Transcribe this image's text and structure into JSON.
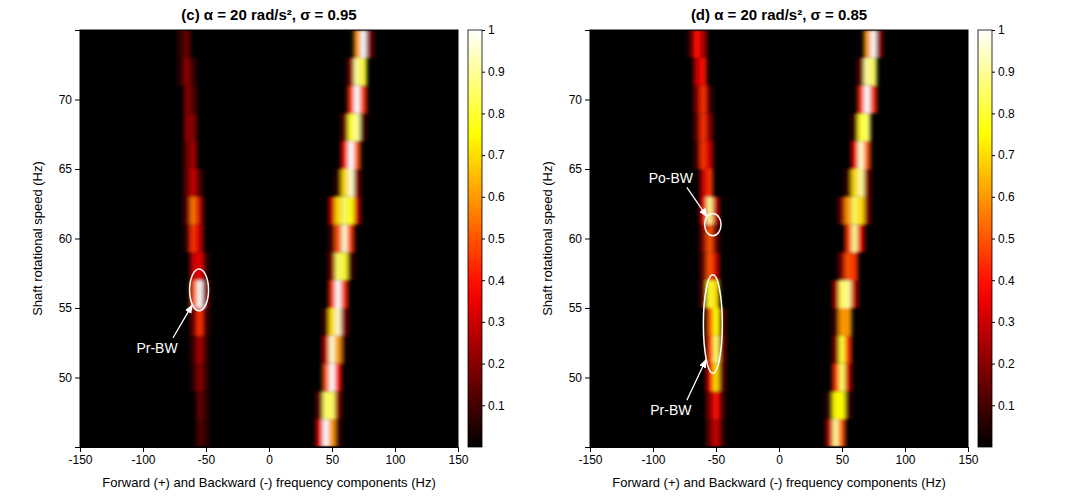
{
  "chart_data": [
    {
      "type": "heatmap",
      "title": "(c) α = 20 rad/s², σ = 0.95",
      "x_label": "Forward (+) and Backward (-) frequency components (Hz)",
      "y_label": "Shaft rotational speed (Hz)",
      "xlim": [
        -150,
        150
      ],
      "xticks": [
        -150,
        -100,
        -50,
        0,
        50,
        100,
        150
      ],
      "ylim": [
        45,
        75
      ],
      "yticks": [
        50,
        55,
        60,
        65,
        70
      ],
      "cell_size": [
        5,
        2
      ],
      "cells": [
        [
          40,
          46,
          0.35
        ],
        [
          45,
          46,
          1
        ],
        [
          50,
          46,
          0.6
        ],
        [
          55,
          46,
          0.1
        ],
        [
          40,
          48,
          0.15
        ],
        [
          45,
          48,
          0.85
        ],
        [
          50,
          48,
          0.85
        ],
        [
          55,
          48,
          0.2
        ],
        [
          45,
          50,
          0.5
        ],
        [
          50,
          50,
          1
        ],
        [
          55,
          50,
          0.4
        ],
        [
          45,
          52,
          0.3
        ],
        [
          50,
          52,
          0.95
        ],
        [
          55,
          52,
          0.6
        ],
        [
          60,
          52,
          0.05
        ],
        [
          45,
          54,
          0.1
        ],
        [
          50,
          54,
          0.7
        ],
        [
          55,
          54,
          0.95
        ],
        [
          60,
          54,
          0.2
        ],
        [
          50,
          56,
          0.45
        ],
        [
          55,
          56,
          1
        ],
        [
          60,
          56,
          0.45
        ],
        [
          50,
          58,
          0.2
        ],
        [
          55,
          58,
          0.85
        ],
        [
          60,
          58,
          0.8
        ],
        [
          65,
          58,
          0.1
        ],
        [
          50,
          60,
          0.1
        ],
        [
          55,
          60,
          0.5
        ],
        [
          60,
          60,
          0.95
        ],
        [
          65,
          60,
          0.45
        ],
        [
          50,
          62,
          0.3
        ],
        [
          55,
          62,
          0.7
        ],
        [
          60,
          62,
          0.85
        ],
        [
          65,
          62,
          0.75
        ],
        [
          70,
          62,
          0.3
        ],
        [
          55,
          64,
          0.1
        ],
        [
          60,
          64,
          0.7
        ],
        [
          65,
          64,
          0.95
        ],
        [
          70,
          64,
          0.2
        ],
        [
          60,
          66,
          0.4
        ],
        [
          65,
          66,
          1
        ],
        [
          70,
          66,
          0.5
        ],
        [
          60,
          68,
          0.15
        ],
        [
          65,
          68,
          0.8
        ],
        [
          70,
          68,
          0.9
        ],
        [
          75,
          68,
          0.1
        ],
        [
          65,
          70,
          0.45
        ],
        [
          70,
          70,
          1
        ],
        [
          75,
          70,
          0.45
        ],
        [
          65,
          72,
          0.2
        ],
        [
          70,
          72,
          0.9
        ],
        [
          75,
          72,
          0.8
        ],
        [
          70,
          74,
          0.6
        ],
        [
          75,
          74,
          1
        ],
        [
          80,
          74,
          0.2
        ],
        [
          -55,
          46,
          0.12
        ],
        [
          -50,
          46,
          0.06
        ],
        [
          -55,
          48,
          0.15
        ],
        [
          -50,
          48,
          0.06
        ],
        [
          -60,
          50,
          0.06
        ],
        [
          -55,
          50,
          0.2
        ],
        [
          -50,
          50,
          0.08
        ],
        [
          -60,
          52,
          0.08
        ],
        [
          -55,
          52,
          0.25
        ],
        [
          -50,
          52,
          0.08
        ],
        [
          -60,
          54,
          0.15
        ],
        [
          -55,
          54,
          0.45
        ],
        [
          -50,
          54,
          0.1
        ],
        [
          -60,
          56,
          0.5
        ],
        [
          -55,
          56,
          1
        ],
        [
          -50,
          56,
          0.2
        ],
        [
          -60,
          58,
          0.3
        ],
        [
          -55,
          58,
          0.35
        ],
        [
          -50,
          58,
          0.06
        ],
        [
          -65,
          60,
          0.08
        ],
        [
          -60,
          60,
          0.45
        ],
        [
          -55,
          60,
          0.3
        ],
        [
          -65,
          62,
          0.15
        ],
        [
          -60,
          62,
          0.55
        ],
        [
          -55,
          62,
          0.3
        ],
        [
          -65,
          64,
          0.15
        ],
        [
          -60,
          64,
          0.3
        ],
        [
          -55,
          64,
          0.1
        ],
        [
          -65,
          66,
          0.15
        ],
        [
          -60,
          66,
          0.25
        ],
        [
          -65,
          68,
          0.2
        ],
        [
          -60,
          68,
          0.2
        ],
        [
          -65,
          70,
          0.2
        ],
        [
          -60,
          70,
          0.12
        ],
        [
          -70,
          72,
          0.06
        ],
        [
          -65,
          72,
          0.2
        ],
        [
          -60,
          72,
          0.08
        ],
        [
          -70,
          74,
          0.08
        ],
        [
          -65,
          74,
          0.15
        ]
      ],
      "colorbar_range": [
        0,
        1
      ],
      "colorbar_ticks": [
        0.1,
        0.2,
        0.3,
        0.4,
        0.5,
        0.6,
        0.7,
        0.8,
        0.9,
        1
      ],
      "annotations": [
        {
          "text": "Pr-BW",
          "region": {
            "x": [
              -63,
              -48
            ],
            "y": [
              54.8,
              57.8
            ]
          }
        }
      ]
    },
    {
      "type": "heatmap",
      "title": "(d) α = 20 rad/s², σ = 0.85",
      "x_label": "Forward (+) and Backward (-) frequency components (Hz)",
      "y_label": "Shaft rotational speed (Hz)",
      "xlim": [
        -150,
        150
      ],
      "xticks": [
        -150,
        -100,
        -50,
        0,
        50,
        100,
        150
      ],
      "ylim": [
        45,
        75
      ],
      "yticks": [
        50,
        55,
        60,
        65,
        70
      ],
      "cell_size": [
        5,
        2
      ],
      "cells": [
        [
          40,
          46,
          0.3
        ],
        [
          45,
          46,
          0.9
        ],
        [
          50,
          46,
          0.5
        ],
        [
          40,
          48,
          0.1
        ],
        [
          45,
          48,
          0.75
        ],
        [
          50,
          48,
          0.75
        ],
        [
          55,
          48,
          0.1
        ],
        [
          45,
          50,
          0.45
        ],
        [
          50,
          50,
          0.85
        ],
        [
          55,
          50,
          0.3
        ],
        [
          45,
          52,
          0.2
        ],
        [
          50,
          52,
          0.8
        ],
        [
          55,
          52,
          0.45
        ],
        [
          45,
          54,
          0.1
        ],
        [
          50,
          54,
          0.6
        ],
        [
          55,
          54,
          0.6
        ],
        [
          45,
          56,
          0.25
        ],
        [
          50,
          56,
          0.85
        ],
        [
          55,
          56,
          0.9
        ],
        [
          60,
          56,
          0.3
        ],
        [
          50,
          58,
          0.2
        ],
        [
          55,
          58,
          0.5
        ],
        [
          60,
          58,
          0.45
        ],
        [
          55,
          60,
          0.45
        ],
        [
          60,
          60,
          0.9
        ],
        [
          65,
          60,
          0.35
        ],
        [
          50,
          62,
          0.2
        ],
        [
          55,
          62,
          0.6
        ],
        [
          60,
          62,
          0.85
        ],
        [
          65,
          62,
          0.7
        ],
        [
          70,
          62,
          0.2
        ],
        [
          55,
          64,
          0.1
        ],
        [
          60,
          64,
          0.7
        ],
        [
          65,
          64,
          0.9
        ],
        [
          70,
          64,
          0.2
        ],
        [
          60,
          66,
          0.35
        ],
        [
          65,
          66,
          0.95
        ],
        [
          70,
          66,
          0.5
        ],
        [
          60,
          68,
          0.1
        ],
        [
          65,
          68,
          0.8
        ],
        [
          70,
          68,
          0.85
        ],
        [
          65,
          70,
          0.45
        ],
        [
          70,
          70,
          1
        ],
        [
          75,
          70,
          0.45
        ],
        [
          65,
          72,
          0.15
        ],
        [
          70,
          72,
          0.9
        ],
        [
          75,
          72,
          0.85
        ],
        [
          70,
          74,
          0.6
        ],
        [
          75,
          74,
          1
        ],
        [
          80,
          74,
          0.2
        ],
        [
          -55,
          46,
          0.15
        ],
        [
          -50,
          46,
          0.3
        ],
        [
          -45,
          46,
          0.08
        ],
        [
          -55,
          48,
          0.2
        ],
        [
          -50,
          48,
          0.4
        ],
        [
          -45,
          48,
          0.1
        ],
        [
          -55,
          50,
          0.35
        ],
        [
          -50,
          50,
          0.7
        ],
        [
          -45,
          50,
          0.15
        ],
        [
          -55,
          52,
          0.45
        ],
        [
          -50,
          52,
          0.85
        ],
        [
          -45,
          52,
          0.2
        ],
        [
          -55,
          54,
          0.5
        ],
        [
          -50,
          54,
          0.75
        ],
        [
          -45,
          54,
          0.15
        ],
        [
          -60,
          56,
          0.15
        ],
        [
          -55,
          56,
          0.8
        ],
        [
          -50,
          56,
          0.7
        ],
        [
          -60,
          58,
          0.15
        ],
        [
          -55,
          58,
          0.5
        ],
        [
          -50,
          58,
          0.3
        ],
        [
          -60,
          60,
          0.2
        ],
        [
          -55,
          60,
          0.5
        ],
        [
          -50,
          60,
          0.15
        ],
        [
          -60,
          62,
          0.35
        ],
        [
          -55,
          62,
          0.9
        ],
        [
          -50,
          62,
          0.3
        ],
        [
          -60,
          64,
          0.3
        ],
        [
          -55,
          64,
          0.45
        ],
        [
          -65,
          66,
          0.1
        ],
        [
          -60,
          66,
          0.45
        ],
        [
          -55,
          66,
          0.3
        ],
        [
          -65,
          68,
          0.15
        ],
        [
          -60,
          68,
          0.45
        ],
        [
          -55,
          68,
          0.2
        ],
        [
          -65,
          70,
          0.2
        ],
        [
          -60,
          70,
          0.45
        ],
        [
          -55,
          70,
          0.1
        ],
        [
          -65,
          72,
          0.3
        ],
        [
          -60,
          72,
          0.4
        ],
        [
          -70,
          74,
          0.1
        ],
        [
          -65,
          74,
          0.4
        ],
        [
          -60,
          74,
          0.25
        ]
      ],
      "colorbar_range": [
        0,
        1
      ],
      "colorbar_ticks": [
        0.1,
        0.2,
        0.3,
        0.4,
        0.5,
        0.6,
        0.7,
        0.8,
        0.9,
        1
      ],
      "annotations": [
        {
          "text": "Po-BW",
          "region": {
            "x": [
              -59,
              -46
            ],
            "y": [
              60.2,
              61.8
            ]
          }
        },
        {
          "text": "Pr-BW",
          "region": {
            "x": [
              -60,
              -45
            ],
            "y": [
              50.3,
              57.4
            ]
          }
        }
      ]
    }
  ]
}
